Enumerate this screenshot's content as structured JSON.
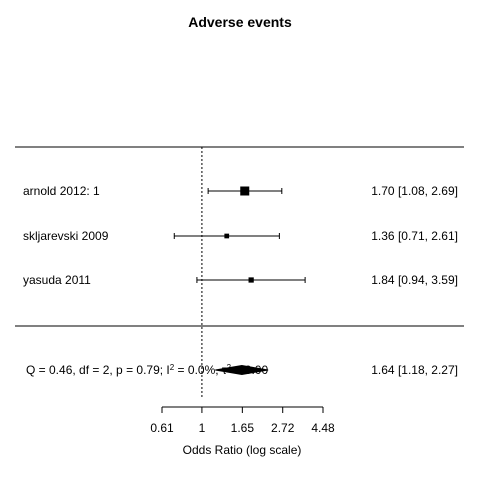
{
  "chart_data": {
    "type": "forest",
    "title": "Adverse events",
    "xlabel": "Odds Ratio (log scale)",
    "scale": "log",
    "xlim": [
      0.61,
      4.48
    ],
    "xticks": [
      "0.61",
      "1",
      "1.65",
      "2.72",
      "4.48"
    ],
    "reference_line": 1,
    "studies": [
      {
        "label": "arnold 2012: 1",
        "estimate": 1.7,
        "lower": 1.08,
        "upper": 2.69,
        "ci_text": "1.70 [1.08, 2.69]",
        "weight": 0.62
      },
      {
        "label": "skljarevski 2009",
        "estimate": 1.36,
        "lower": 0.71,
        "upper": 2.61,
        "ci_text": "1.36 [0.71, 2.61]",
        "weight": 0.17
      },
      {
        "label": "yasuda 2011",
        "estimate": 1.84,
        "lower": 0.94,
        "upper": 3.59,
        "ci_text": "1.84 [0.94, 3.59]",
        "weight": 0.21
      }
    ],
    "summary": {
      "estimate": 1.64,
      "lower": 1.18,
      "upper": 2.27,
      "ci_text": "1.64 [1.18, 2.27]",
      "heterogeneity_text": "Q = 0.46, df = 2, p = 0.79; I",
      "heterogeneity_sup": "2",
      "heterogeneity_mid": " = 0.0%, τ",
      "heterogeneity_sup2": "2",
      "heterogeneity_end": " = 0.00"
    }
  }
}
